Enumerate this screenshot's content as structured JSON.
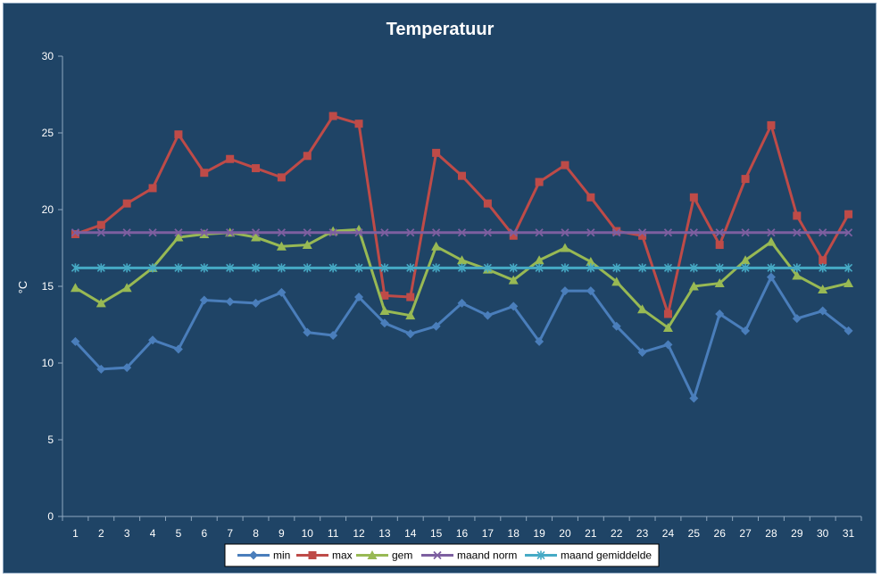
{
  "chart_data": {
    "type": "line",
    "title": "Temperatuur",
    "xlabel": "",
    "ylabel": "°C",
    "ylim": [
      0,
      30
    ],
    "yticks": [
      0,
      5,
      10,
      15,
      20,
      25,
      30
    ],
    "x": [
      1,
      2,
      3,
      4,
      5,
      6,
      7,
      8,
      9,
      10,
      11,
      12,
      13,
      14,
      15,
      16,
      17,
      18,
      19,
      20,
      21,
      22,
      23,
      24,
      25,
      26,
      27,
      28,
      29,
      30,
      31
    ],
    "grid": false,
    "legend_position": "bottom",
    "series": [
      {
        "name": "min",
        "color": "#4a7ebb",
        "marker": "diamond",
        "values": [
          11.4,
          9.6,
          9.7,
          11.5,
          10.9,
          14.1,
          14.0,
          13.9,
          14.6,
          12.0,
          11.8,
          14.3,
          12.6,
          11.9,
          12.4,
          13.9,
          13.1,
          13.7,
          11.4,
          14.7,
          14.7,
          12.4,
          10.7,
          11.2,
          7.7,
          13.2,
          12.1,
          15.6,
          12.9,
          13.4,
          12.1
        ]
      },
      {
        "name": "max",
        "color": "#be4b48",
        "marker": "square",
        "values": [
          18.4,
          19.0,
          20.4,
          21.4,
          24.9,
          22.4,
          23.3,
          22.7,
          22.1,
          23.5,
          26.1,
          25.6,
          14.4,
          14.3,
          23.7,
          22.2,
          20.4,
          18.3,
          21.8,
          22.9,
          20.8,
          18.6,
          18.3,
          13.2,
          20.8,
          17.7,
          22.0,
          25.5,
          19.6,
          16.7,
          19.7
        ]
      },
      {
        "name": "gem",
        "color": "#98b954",
        "marker": "triangle",
        "values": [
          14.9,
          13.9,
          14.9,
          16.2,
          18.2,
          18.4,
          18.5,
          18.2,
          17.6,
          17.7,
          18.6,
          18.7,
          13.4,
          13.1,
          17.6,
          16.7,
          16.1,
          15.4,
          16.7,
          17.5,
          16.6,
          15.3,
          13.5,
          12.3,
          15.0,
          15.2,
          16.7,
          17.9,
          15.7,
          14.8,
          15.2
        ]
      },
      {
        "name": "maand norm",
        "color": "#7d5fa0",
        "marker": "x",
        "values": [
          18.5,
          18.5,
          18.5,
          18.5,
          18.5,
          18.5,
          18.5,
          18.5,
          18.5,
          18.5,
          18.5,
          18.5,
          18.5,
          18.5,
          18.5,
          18.5,
          18.5,
          18.5,
          18.5,
          18.5,
          18.5,
          18.5,
          18.5,
          18.5,
          18.5,
          18.5,
          18.5,
          18.5,
          18.5,
          18.5,
          18.5
        ]
      },
      {
        "name": "maand gemiddelde",
        "color": "#46aac5",
        "marker": "star",
        "values": [
          16.2,
          16.2,
          16.2,
          16.2,
          16.2,
          16.2,
          16.2,
          16.2,
          16.2,
          16.2,
          16.2,
          16.2,
          16.2,
          16.2,
          16.2,
          16.2,
          16.2,
          16.2,
          16.2,
          16.2,
          16.2,
          16.2,
          16.2,
          16.2,
          16.2,
          16.2,
          16.2,
          16.2,
          16.2,
          16.2,
          16.2
        ]
      }
    ]
  }
}
